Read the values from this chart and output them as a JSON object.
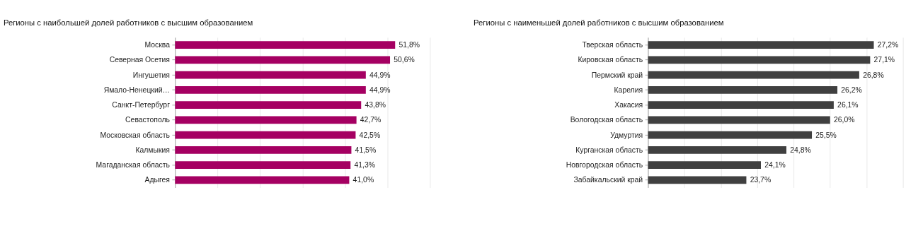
{
  "chart_data": [
    {
      "type": "bar",
      "orientation": "horizontal",
      "title": "Регионы с наибольшей долей работников с высшим образованием",
      "categories": [
        "Москва",
        "Северная Осетия",
        "Ингушетия",
        "Ямало-Ненецкий…",
        "Санкт-Петербург",
        "Севастополь",
        "Московская область",
        "Калмыкия",
        "Магаданская область",
        "Адыгея"
      ],
      "values": [
        51.8,
        50.6,
        44.9,
        44.9,
        43.8,
        42.7,
        42.5,
        41.5,
        41.3,
        41.0
      ],
      "value_labels": [
        "51,8%",
        "50,6%",
        "44,9%",
        "44,9%",
        "43,8%",
        "42,7%",
        "42,5%",
        "41,5%",
        "41,3%",
        "41,0%"
      ],
      "color": "#a50062",
      "xlim": [
        0,
        60
      ],
      "xticks": [
        {
          "value": 0,
          "label": null
        },
        {
          "value": 10,
          "label": null
        },
        {
          "value": 20,
          "label": null
        },
        {
          "value": 30,
          "label": null
        },
        {
          "value": 40,
          "label": null
        },
        {
          "value": 50,
          "label": null
        },
        {
          "value": 60,
          "label": null
        }
      ],
      "grid": "x",
      "tick_labels": "y"
    },
    {
      "type": "bar",
      "orientation": "horizontal",
      "title": "Регионы с наименьшей долей работников с высшим образованием",
      "categories": [
        "Тверская область",
        "Кировская область",
        "Пермский край",
        "Карелия",
        "Хакасия",
        "Вологодская область",
        "Удмуртия",
        "Курганская область",
        "Новгородская область",
        "Забайкальский край"
      ],
      "values": [
        27.2,
        27.1,
        26.8,
        26.2,
        26.1,
        26.0,
        25.5,
        24.8,
        24.1,
        23.7
      ],
      "value_labels": [
        "27,2%",
        "27,1%",
        "26,8%",
        "26,2%",
        "26,1%",
        "26,0%",
        "25,5%",
        "24,8%",
        "24,1%",
        "23,7%"
      ],
      "color": "#404040",
      "xlim": [
        21,
        28
      ],
      "xticks": [
        {
          "value": 21,
          "label": null
        },
        {
          "value": 22,
          "label": null
        },
        {
          "value": 23,
          "label": null
        },
        {
          "value": 24,
          "label": null
        },
        {
          "value": 25,
          "label": null
        },
        {
          "value": 26,
          "label": null
        },
        {
          "value": 27,
          "label": null
        },
        {
          "value": 28,
          "label": null
        }
      ],
      "grid": "x",
      "tick_labels": "y"
    }
  ]
}
